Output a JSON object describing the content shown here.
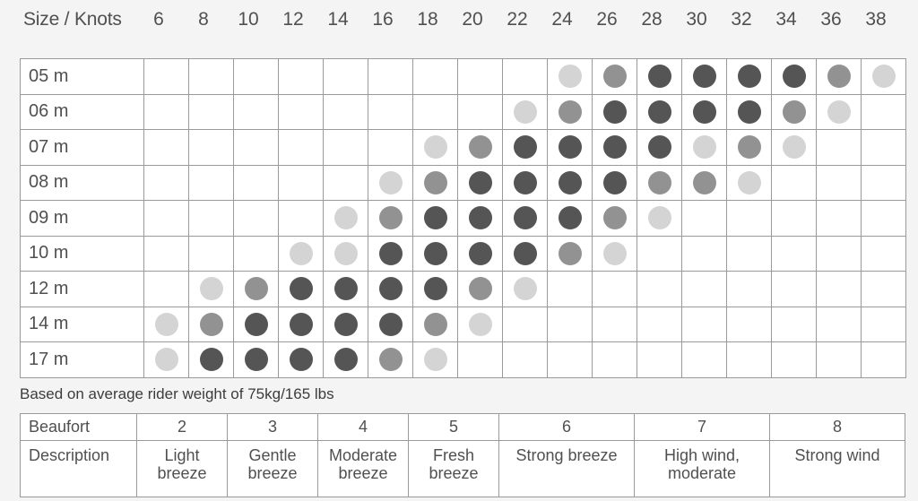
{
  "chart_data": {
    "type": "table",
    "title": "Size / Knots",
    "x": [
      "6",
      "8",
      "10",
      "12",
      "14",
      "16",
      "18",
      "20",
      "22",
      "24",
      "26",
      "28",
      "30",
      "32",
      "34",
      "36",
      "38"
    ],
    "categories": [
      "05 m",
      "06 m",
      "07 m",
      "08 m",
      "09 m",
      "10 m",
      "12 m",
      "14 m",
      "17 m"
    ],
    "levels": {
      "0": "none",
      "1": "light",
      "2": "medium",
      "3": "dark"
    },
    "level_colors": {
      "1": "#d4d4d4",
      "2": "#929292",
      "3": "#555555"
    },
    "values": [
      [
        0,
        0,
        0,
        0,
        0,
        0,
        0,
        0,
        0,
        1,
        2,
        3,
        3,
        3,
        3,
        2,
        1
      ],
      [
        0,
        0,
        0,
        0,
        0,
        0,
        0,
        0,
        1,
        2,
        3,
        3,
        3,
        3,
        2,
        1,
        0
      ],
      [
        0,
        0,
        0,
        0,
        0,
        0,
        1,
        2,
        3,
        3,
        3,
        3,
        1,
        2,
        1,
        0,
        0
      ],
      [
        0,
        0,
        0,
        0,
        0,
        1,
        2,
        3,
        3,
        3,
        3,
        2,
        2,
        1,
        0,
        0,
        0
      ],
      [
        0,
        0,
        0,
        0,
        1,
        2,
        3,
        3,
        3,
        3,
        2,
        1,
        0,
        0,
        0,
        0,
        0
      ],
      [
        0,
        0,
        0,
        1,
        1,
        3,
        3,
        3,
        3,
        2,
        1,
        0,
        0,
        0,
        0,
        0,
        0
      ],
      [
        0,
        1,
        2,
        3,
        3,
        3,
        3,
        2,
        1,
        0,
        0,
        0,
        0,
        0,
        0,
        0,
        0
      ],
      [
        1,
        2,
        3,
        3,
        3,
        3,
        2,
        1,
        0,
        0,
        0,
        0,
        0,
        0,
        0,
        0,
        0
      ],
      [
        1,
        3,
        3,
        3,
        3,
        2,
        1,
        0,
        0,
        0,
        0,
        0,
        0,
        0,
        0,
        0,
        0
      ]
    ]
  },
  "note": "Based on average rider weight of 75kg/165 lbs",
  "beaufort": {
    "row_label": "Beaufort",
    "desc_label": "Description",
    "entries": [
      {
        "force": "2",
        "description": "Light\nbreeze",
        "span": 2
      },
      {
        "force": "3",
        "description": "Gentle\nbreeze",
        "span": 2
      },
      {
        "force": "4",
        "description": "Moderate\nbreeze",
        "span": 2
      },
      {
        "force": "5",
        "description": "Fresh\nbreeze",
        "span": 2
      },
      {
        "force": "6",
        "description": "Strong breeze",
        "span": 3
      },
      {
        "force": "7",
        "description": "High wind,\nmoderate",
        "span": 3
      },
      {
        "force": "8",
        "description": "Strong wind",
        "span": 3
      }
    ]
  }
}
